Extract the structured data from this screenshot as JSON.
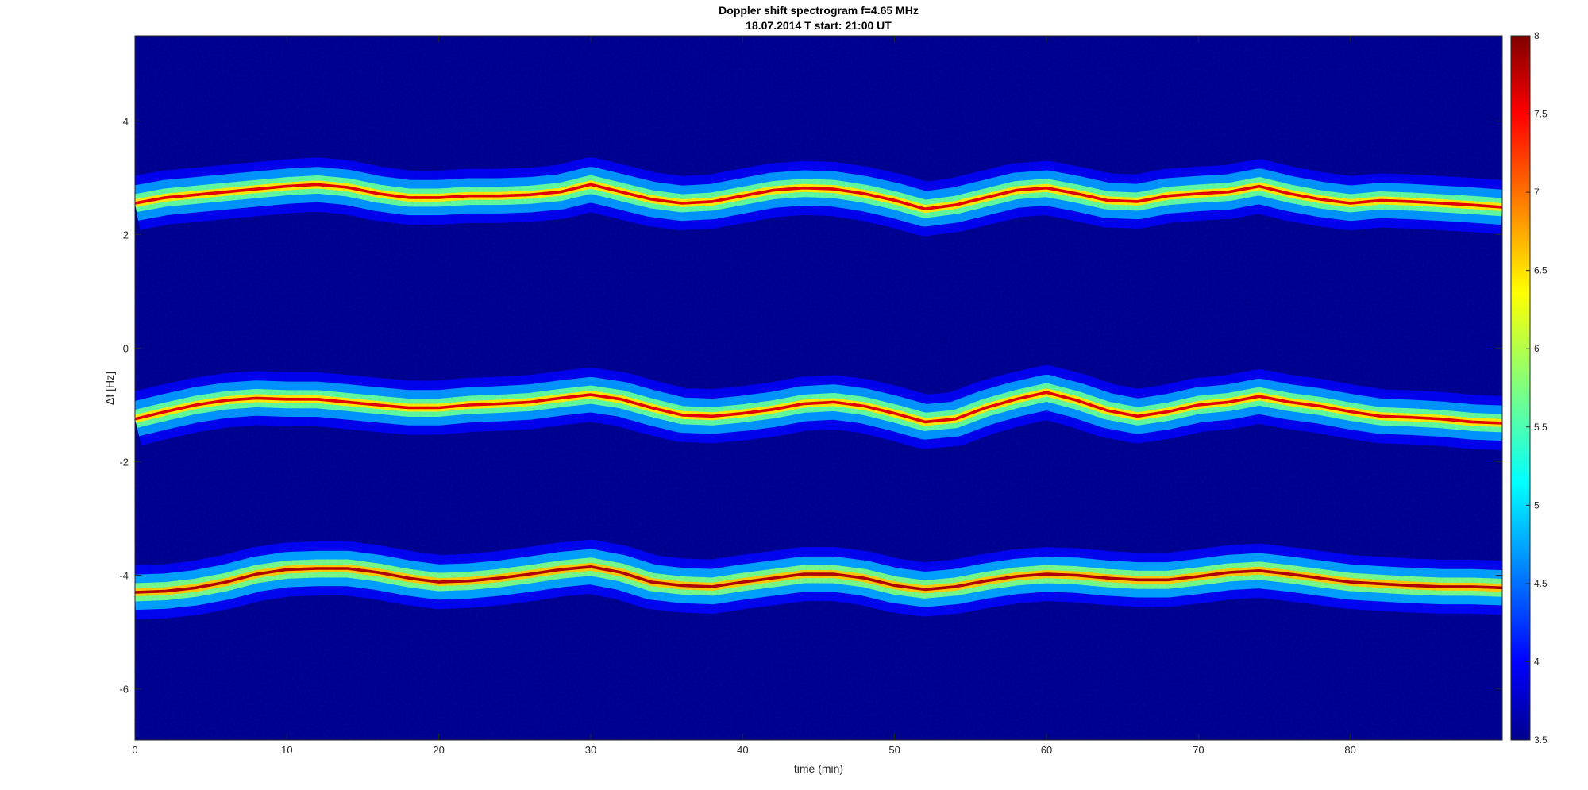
{
  "chart_data": {
    "type": "heatmap",
    "title": "Doppler shift spectrogram f=4.65 MHz",
    "subtitle": "18.07.2014   T start: 21:00 UT",
    "xlabel": "time (min)",
    "ylabel": "Δf [Hz]",
    "xlim": [
      0,
      90
    ],
    "ylim": [
      -6.9,
      5.5
    ],
    "xticks": [
      0,
      10,
      20,
      30,
      40,
      50,
      60,
      70,
      80
    ],
    "yticks": [
      -6,
      -4,
      -2,
      0,
      2,
      4
    ],
    "grid": false,
    "colormap": "jet",
    "background_color": "#00008f",
    "colorbar": {
      "location": "right",
      "range": [
        3.5,
        8
      ],
      "ticks": [
        3.5,
        4,
        4.5,
        5,
        5.5,
        6,
        6.5,
        7,
        7.5,
        8
      ]
    },
    "traces": [
      {
        "name": "",
        "peak_value": 7.6,
        "time": [
          0,
          2,
          4,
          6,
          8,
          10,
          12,
          14,
          16,
          18,
          20,
          22,
          24,
          26,
          28,
          30,
          32,
          34,
          36,
          38,
          40,
          42,
          44,
          46,
          48,
          50,
          52,
          54,
          56,
          58,
          60,
          62,
          64,
          66,
          68,
          70,
          72,
          74,
          76,
          78,
          80,
          82,
          84,
          86,
          88,
          90
        ],
        "df": [
          2.55,
          2.65,
          2.7,
          2.75,
          2.8,
          2.85,
          2.88,
          2.83,
          2.72,
          2.65,
          2.65,
          2.68,
          2.68,
          2.7,
          2.75,
          2.88,
          2.75,
          2.62,
          2.55,
          2.58,
          2.68,
          2.78,
          2.82,
          2.8,
          2.72,
          2.6,
          2.45,
          2.52,
          2.65,
          2.78,
          2.82,
          2.72,
          2.6,
          2.58,
          2.68,
          2.72,
          2.75,
          2.85,
          2.72,
          2.62,
          2.55,
          2.6,
          2.58,
          2.55,
          2.52,
          2.48
        ]
      },
      {
        "name": "",
        "peak_value": 7.6,
        "time": [
          0,
          2,
          4,
          6,
          8,
          10,
          12,
          14,
          16,
          18,
          20,
          22,
          24,
          26,
          28,
          30,
          32,
          34,
          36,
          38,
          40,
          42,
          44,
          46,
          48,
          50,
          52,
          54,
          56,
          58,
          60,
          62,
          64,
          66,
          68,
          70,
          72,
          74,
          76,
          78,
          80,
          82,
          84,
          86,
          88,
          90
        ],
        "df": [
          -1.25,
          -1.12,
          -1.0,
          -0.92,
          -0.88,
          -0.9,
          -0.9,
          -0.95,
          -1.0,
          -1.05,
          -1.05,
          -1.0,
          -0.98,
          -0.95,
          -0.88,
          -0.82,
          -0.9,
          -1.05,
          -1.18,
          -1.2,
          -1.15,
          -1.08,
          -0.98,
          -0.95,
          -1.02,
          -1.15,
          -1.3,
          -1.25,
          -1.05,
          -0.9,
          -0.78,
          -0.92,
          -1.1,
          -1.2,
          -1.12,
          -1.0,
          -0.95,
          -0.85,
          -0.95,
          -1.02,
          -1.12,
          -1.2,
          -1.22,
          -1.25,
          -1.3,
          -1.32
        ]
      },
      {
        "name": "",
        "peak_value": 7.8,
        "time": [
          0,
          2,
          4,
          6,
          8,
          10,
          12,
          14,
          16,
          18,
          20,
          22,
          24,
          26,
          28,
          30,
          32,
          34,
          36,
          38,
          40,
          42,
          44,
          46,
          48,
          50,
          52,
          54,
          56,
          58,
          60,
          62,
          64,
          66,
          68,
          70,
          72,
          74,
          76,
          78,
          80,
          82,
          84,
          86,
          88,
          90
        ],
        "df": [
          -4.3,
          -4.28,
          -4.22,
          -4.12,
          -3.98,
          -3.9,
          -3.88,
          -3.88,
          -3.95,
          -4.05,
          -4.12,
          -4.1,
          -4.05,
          -3.98,
          -3.9,
          -3.85,
          -3.95,
          -4.12,
          -4.18,
          -4.2,
          -4.12,
          -4.05,
          -3.98,
          -3.98,
          -4.05,
          -4.18,
          -4.25,
          -4.2,
          -4.1,
          -4.02,
          -3.98,
          -4.0,
          -4.05,
          -4.08,
          -4.08,
          -4.02,
          -3.95,
          -3.92,
          -3.98,
          -4.05,
          -4.12,
          -4.15,
          -4.18,
          -4.2,
          -4.2,
          -4.22
        ]
      }
    ]
  }
}
